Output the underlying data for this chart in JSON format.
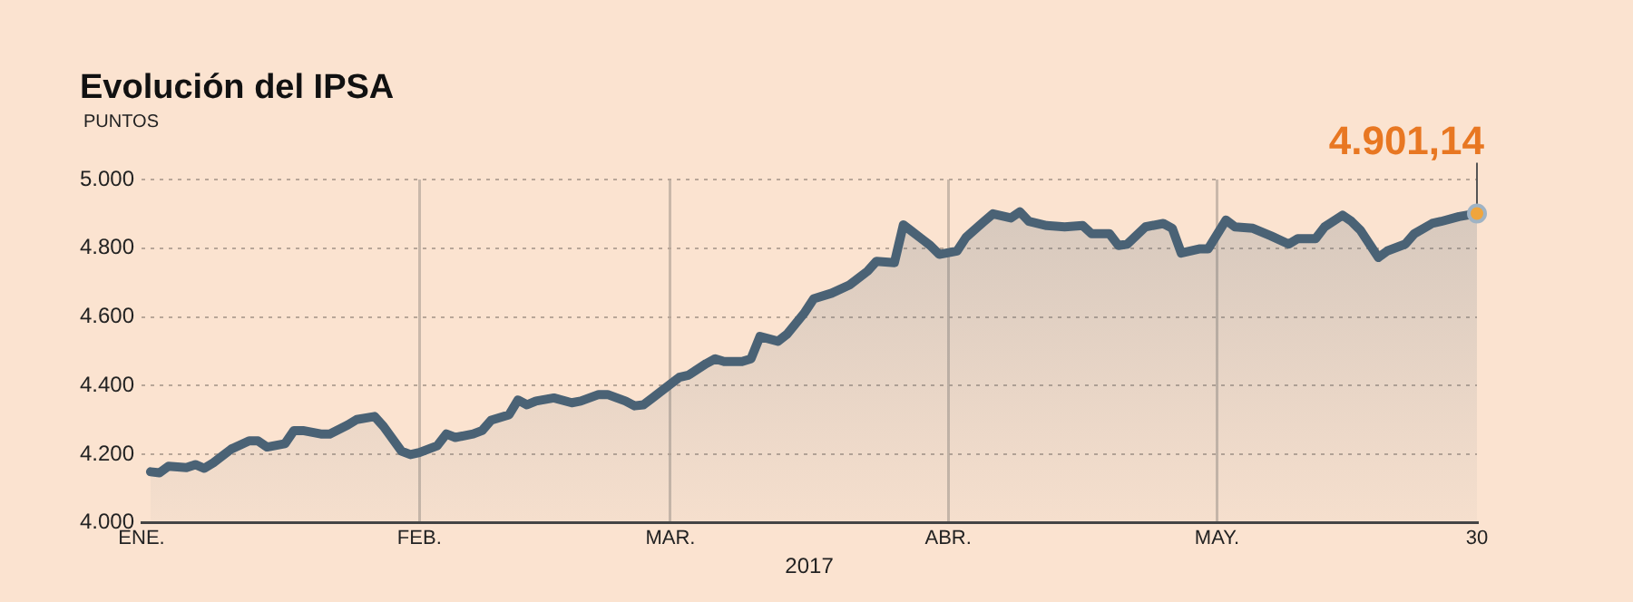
{
  "chart_data": {
    "type": "area",
    "title": "Evolución del IPSA",
    "ylabel": "PUNTOS",
    "xlabel": "2017",
    "x": [
      "2017-01-02",
      "2017-01-03",
      "2017-01-04",
      "2017-01-06",
      "2017-01-07",
      "2017-01-08",
      "2017-01-09",
      "2017-01-11",
      "2017-01-13",
      "2017-01-14",
      "2017-01-15",
      "2017-01-17",
      "2017-01-18",
      "2017-01-19",
      "2017-01-21",
      "2017-01-22",
      "2017-01-24",
      "2017-01-25",
      "2017-01-27",
      "2017-01-28",
      "2017-01-30",
      "2017-01-31",
      "2017-02-01",
      "2017-02-03",
      "2017-02-04",
      "2017-02-05",
      "2017-02-07",
      "2017-02-08",
      "2017-02-09",
      "2017-02-11",
      "2017-02-12",
      "2017-02-13",
      "2017-02-14",
      "2017-02-16",
      "2017-02-18",
      "2017-02-19",
      "2017-02-21",
      "2017-02-22",
      "2017-02-24",
      "2017-02-25",
      "2017-02-26",
      "2017-02-27",
      "2017-03-01",
      "2017-03-02",
      "2017-03-03",
      "2017-03-05",
      "2017-03-06",
      "2017-03-07",
      "2017-03-09",
      "2017-03-10",
      "2017-03-11",
      "2017-03-13",
      "2017-03-14",
      "2017-03-16",
      "2017-03-17",
      "2017-03-19",
      "2017-03-21",
      "2017-03-23",
      "2017-03-24",
      "2017-03-26",
      "2017-03-27",
      "2017-03-28",
      "2017-03-30",
      "2017-03-31",
      "2017-04-02",
      "2017-04-03",
      "2017-04-05",
      "2017-04-06",
      "2017-04-08",
      "2017-04-09",
      "2017-04-10",
      "2017-04-12",
      "2017-04-14",
      "2017-04-16",
      "2017-04-17",
      "2017-04-19",
      "2017-04-20",
      "2017-04-21",
      "2017-04-23",
      "2017-04-25",
      "2017-04-26",
      "2017-04-27",
      "2017-04-29",
      "2017-04-30",
      "2017-05-02",
      "2017-05-03",
      "2017-05-05",
      "2017-05-07",
      "2017-05-09",
      "2017-05-10",
      "2017-05-12",
      "2017-05-13",
      "2017-05-15",
      "2017-05-16",
      "2017-05-17",
      "2017-05-19",
      "2017-05-20",
      "2017-05-22",
      "2017-05-23",
      "2017-05-25",
      "2017-05-26",
      "2017-05-28",
      "2017-05-30"
    ],
    "series": [
      {
        "color": "#4a6275",
        "values": [
          4149,
          4146,
          4165,
          4161,
          4170,
          4159,
          4175,
          4215,
          4239,
          4239,
          4221,
          4231,
          4269,
          4269,
          4259,
          4259,
          4285,
          4301,
          4310,
          4281,
          4209,
          4199,
          4205,
          4225,
          4259,
          4249,
          4259,
          4269,
          4299,
          4315,
          4358,
          4344,
          4355,
          4364,
          4350,
          4355,
          4374,
          4374,
          4355,
          4341,
          4344,
          4364,
          4404,
          4424,
          4430,
          4464,
          4478,
          4470,
          4470,
          4478,
          4543,
          4529,
          4549,
          4613,
          4653,
          4669,
          4693,
          4733,
          4762,
          4758,
          4868,
          4848,
          4808,
          4782,
          4792,
          4832,
          4878,
          4900,
          4888,
          4906,
          4878,
          4866,
          4862,
          4866,
          4842,
          4842,
          4808,
          4812,
          4862,
          4872,
          4858,
          4786,
          4798,
          4798,
          4882,
          4862,
          4858,
          4836,
          4812,
          4828,
          4828,
          4862,
          4896,
          4878,
          4852,
          4773,
          4792,
          4812,
          4842,
          4872,
          4878,
          4892,
          4901.14
        ]
      }
    ],
    "xlim": [
      "2017-01-01",
      "2017-05-30"
    ],
    "xticks": [
      {
        "value": "2017-01-01",
        "label": "ENE."
      },
      {
        "value": "2017-02-01",
        "label": "FEB."
      },
      {
        "value": "2017-03-01",
        "label": "MAR."
      },
      {
        "value": "2017-04-01",
        "label": "ABR."
      },
      {
        "value": "2017-05-01",
        "label": "MAY."
      },
      {
        "value": "2017-05-30",
        "label": "30"
      }
    ],
    "ylim": [
      4000,
      5000
    ],
    "yticks": [
      {
        "value": 4000,
        "label": "4.000"
      },
      {
        "value": 4200,
        "label": "4.200"
      },
      {
        "value": 4400,
        "label": "4.400"
      },
      {
        "value": 4600,
        "label": "4.600"
      },
      {
        "value": 4800,
        "label": "4.800"
      },
      {
        "value": 5000,
        "label": "5.000"
      }
    ],
    "grid": true,
    "legend": false,
    "annotations": [
      {
        "text": "4.901,14",
        "x": "2017-05-30",
        "y": 4901.14
      }
    ]
  }
}
